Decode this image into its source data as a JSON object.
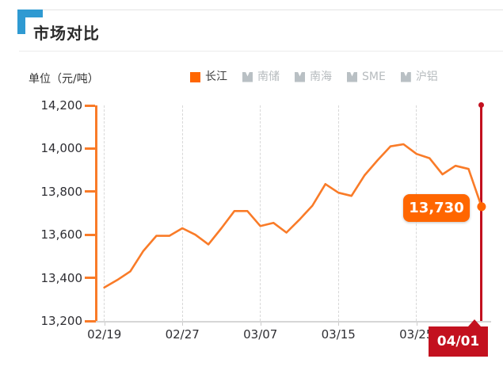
{
  "header": {
    "title": "市场对比"
  },
  "chart": {
    "unit_label": "单位（元/吨）",
    "legend": [
      {
        "key": "changjiang",
        "label": "长江",
        "active": true
      },
      {
        "key": "nanchu",
        "label": "南储",
        "active": false
      },
      {
        "key": "nanhai",
        "label": "南海",
        "active": false
      },
      {
        "key": "sme",
        "label": "SME",
        "active": false
      },
      {
        "key": "hulv",
        "label": "沪铝",
        "active": false
      }
    ],
    "tooltip_value": "13,730",
    "crosshair_date": "04/01"
  },
  "chart_data": {
    "type": "line",
    "title": "市场对比",
    "ylabel": "单位（元/吨）",
    "series": [
      {
        "name": "长江",
        "values": [
          13355,
          13390,
          13430,
          13525,
          13595,
          13595,
          13630,
          13600,
          13555,
          13630,
          13710,
          13710,
          13640,
          13655,
          13610,
          13670,
          13735,
          13835,
          13795,
          13780,
          13875,
          13945,
          14010,
          14020,
          13975,
          13955,
          13880,
          13920,
          13905,
          13730
        ]
      }
    ],
    "x_tick_labels": [
      "02/19",
      "02/27",
      "03/07",
      "03/15",
      "03/25",
      "04/01"
    ],
    "x_tick_indices": [
      0,
      6,
      12,
      18,
      24,
      29
    ],
    "y_ticks": [
      "14,200",
      "14,000",
      "13,800",
      "13,600",
      "13,400",
      "13,200"
    ],
    "y_tick_values": [
      14200,
      14000,
      13800,
      13600,
      13400,
      13200
    ],
    "ylim": [
      13200,
      14200
    ],
    "grid": "vertical-dashed",
    "legend_position": "top",
    "highlight": {
      "index": 29,
      "value": 13730,
      "label": "13,730",
      "date": "04/01"
    }
  },
  "colors": {
    "accent_blue": "#2f9ad2",
    "series_orange": "#f97b28",
    "legend_orange": "#ff6600",
    "inactive_gray": "#b9c0c4",
    "inactive_text": "#b6bbbe",
    "active_text": "#3c3c3c",
    "highlight_red": "#c3111f"
  }
}
